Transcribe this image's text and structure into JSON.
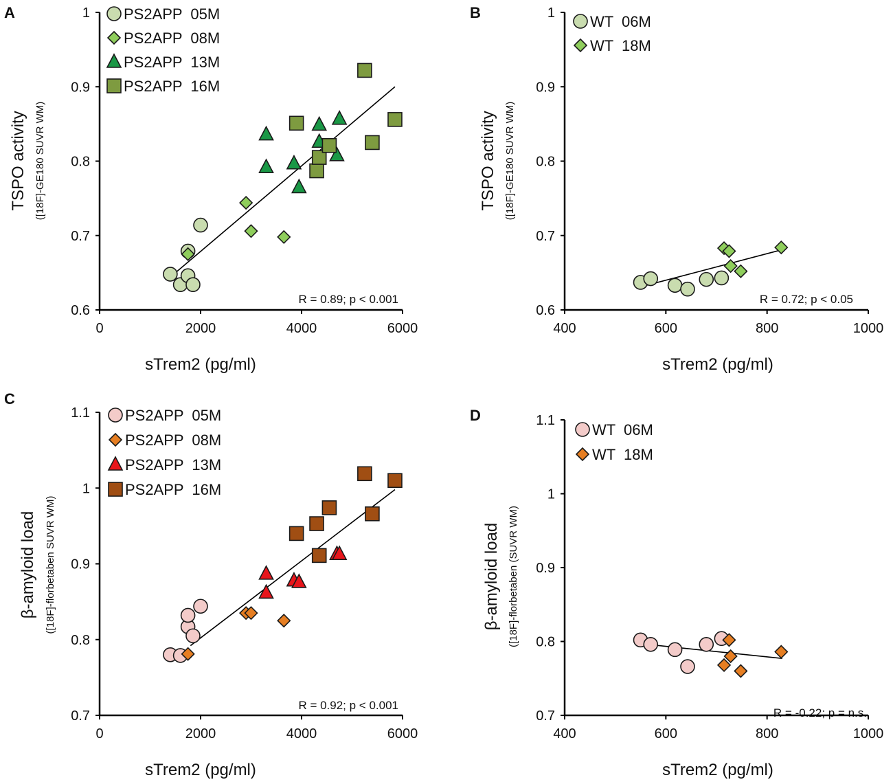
{
  "figure": {
    "panel_labels": [
      "A",
      "B",
      "C",
      "D"
    ]
  },
  "chart_data": [
    {
      "panel": "A",
      "type": "scatter",
      "ylabel": "TSPO activity",
      "ylabel_sub": "([18F]-GE180 SUVR WM)",
      "xlabel": "sTrem2 (pg/ml)",
      "xlim": [
        0,
        6000
      ],
      "ylim": [
        0.6,
        1.0
      ],
      "xticks": [
        0,
        2000,
        4000,
        6000
      ],
      "yticks": [
        0.6,
        0.7,
        0.8,
        0.9,
        1.0
      ],
      "xtick_labels": [
        "0",
        "2000",
        "4000",
        "6000"
      ],
      "ytick_labels": [
        "0.6",
        "0.7",
        "0.8",
        "0.9",
        "1"
      ],
      "legend_position": "top-left",
      "annotation": "R = 0.89; p < 0.001",
      "fit": {
        "x": [
          1450,
          5850
        ],
        "y": [
          0.647,
          0.9
        ]
      },
      "series": [
        {
          "name": "PS2APP  05M",
          "marker": "circle",
          "color": "#c9dcaf",
          "x": [
            1400,
            1600,
            1750,
            1750,
            1850,
            2000
          ],
          "y": [
            0.648,
            0.634,
            0.646,
            0.679,
            0.634,
            0.714
          ]
        },
        {
          "name": "PS2APP  08M",
          "marker": "diamond",
          "color": "#8fce5c",
          "x": [
            1750,
            2900,
            3000,
            3650
          ],
          "y": [
            0.675,
            0.744,
            0.706,
            0.698
          ]
        },
        {
          "name": "PS2APP  13M",
          "marker": "triangle",
          "color": "#1a9846",
          "x": [
            3300,
            3300,
            3850,
            3950,
            4350,
            4350,
            4750,
            4700
          ],
          "y": [
            0.836,
            0.792,
            0.797,
            0.765,
            0.849,
            0.826,
            0.857,
            0.808
          ]
        },
        {
          "name": "PS2APP  16M",
          "marker": "square",
          "color": "#7e9b40",
          "x": [
            3900,
            4300,
            4350,
            4550,
            5250,
            5400,
            5850
          ],
          "y": [
            0.851,
            0.787,
            0.805,
            0.821,
            0.922,
            0.825,
            0.856
          ]
        }
      ]
    },
    {
      "panel": "B",
      "type": "scatter",
      "ylabel": "TSPO activity",
      "ylabel_sub": "([18F]-GE180 SUVR WM)",
      "xlabel": "sTrem2 (pg/ml)",
      "xlim": [
        400,
        1000
      ],
      "ylim": [
        0.6,
        1.0
      ],
      "xticks": [
        400,
        600,
        800,
        1000
      ],
      "yticks": [
        0.6,
        0.7,
        0.8,
        0.9,
        1.0
      ],
      "xtick_labels": [
        "400",
        "600",
        "800",
        "1000"
      ],
      "ytick_labels": [
        "0.6",
        "0.7",
        "0.8",
        "0.9",
        "1"
      ],
      "legend_position": "top-left",
      "annotation": "R = 0.72; p < 0.05",
      "fit": {
        "x": [
          550,
          830
        ],
        "y": [
          0.631,
          0.681
        ]
      },
      "series": [
        {
          "name": "WT  06M",
          "marker": "circle",
          "color": "#c9dcaf",
          "x": [
            550,
            570,
            618,
            643,
            680,
            710
          ],
          "y": [
            0.637,
            0.642,
            0.633,
            0.628,
            0.641,
            0.643
          ]
        },
        {
          "name": "WT  18M",
          "marker": "diamond",
          "color": "#8fce5c",
          "x": [
            715,
            725,
            728,
            748,
            828
          ],
          "y": [
            0.683,
            0.679,
            0.659,
            0.652,
            0.684
          ]
        }
      ]
    },
    {
      "panel": "C",
      "type": "scatter",
      "ylabel": "β-amyloid load",
      "ylabel_sub": "([18F]-florbetaben SUVR WM)",
      "xlabel": "sTrem2 (pg/ml)",
      "xlim": [
        0,
        6000
      ],
      "ylim": [
        0.7,
        1.1
      ],
      "xticks": [
        0,
        2000,
        4000,
        6000
      ],
      "yticks": [
        0.7,
        0.8,
        0.9,
        1.0,
        1.1
      ],
      "xtick_labels": [
        "0",
        "2000",
        "4000",
        "6000"
      ],
      "ytick_labels": [
        "0.7",
        "0.8",
        "0.9",
        "1",
        "1.1"
      ],
      "legend_position": "top-left",
      "annotation": "R = 0.92; p < 0.001",
      "fit": {
        "x": [
          1800,
          5850
        ],
        "y": [
          0.792,
          0.998
        ]
      },
      "series": [
        {
          "name": "PS2APP  05M",
          "marker": "circle",
          "color": "#f3cbc9",
          "x": [
            1400,
            1600,
            1750,
            1750,
            1850,
            2000
          ],
          "y": [
            0.78,
            0.779,
            0.817,
            0.832,
            0.805,
            0.844
          ]
        },
        {
          "name": "PS2APP  08M",
          "marker": "diamond",
          "color": "#e67e22",
          "x": [
            1750,
            2900,
            3000,
            3650
          ],
          "y": [
            0.781,
            0.835,
            0.835,
            0.825
          ]
        },
        {
          "name": "PS2APP  13M",
          "marker": "triangle",
          "color": "#e8151b",
          "x": [
            3300,
            3300,
            3850,
            3950,
            4700,
            4750
          ],
          "y": [
            0.887,
            0.862,
            0.878,
            0.876,
            0.913,
            0.913
          ]
        },
        {
          "name": "PS2APP  16M",
          "marker": "square",
          "color": "#a04e13",
          "x": [
            3900,
            4300,
            4350,
            4550,
            5250,
            5400,
            5850
          ],
          "y": [
            0.94,
            0.953,
            0.911,
            0.974,
            1.019,
            0.966,
            1.01
          ]
        }
      ]
    },
    {
      "panel": "D",
      "type": "scatter",
      "ylabel": "β-amyloid load",
      "ylabel_sub": "([18F]-florbetaben (SUVR WM)",
      "xlabel": "sTrem2 (pg/ml)",
      "xlim": [
        400,
        1000
      ],
      "ylim": [
        0.7,
        1.1
      ],
      "xticks": [
        400,
        600,
        800,
        1000
      ],
      "yticks": [
        0.7,
        0.8,
        0.9,
        1.0,
        1.1
      ],
      "xtick_labels": [
        "400",
        "600",
        "800",
        "1000"
      ],
      "ytick_labels": [
        "0.7",
        "0.8",
        "0.9",
        "1",
        "1.1"
      ],
      "legend_position": "top-left",
      "annotation": "R = -0.22; p = n.s.",
      "fit": {
        "x": [
          550,
          830
        ],
        "y": [
          0.797,
          0.777
        ]
      },
      "series": [
        {
          "name": "WT  06M",
          "marker": "circle",
          "color": "#f3cbc9",
          "x": [
            550,
            570,
            618,
            643,
            680,
            710
          ],
          "y": [
            0.802,
            0.796,
            0.789,
            0.766,
            0.796,
            0.804
          ]
        },
        {
          "name": "WT  18M",
          "marker": "diamond",
          "color": "#e67e22",
          "x": [
            715,
            725,
            728,
            748,
            828
          ],
          "y": [
            0.768,
            0.802,
            0.78,
            0.76,
            0.786
          ]
        }
      ]
    }
  ]
}
